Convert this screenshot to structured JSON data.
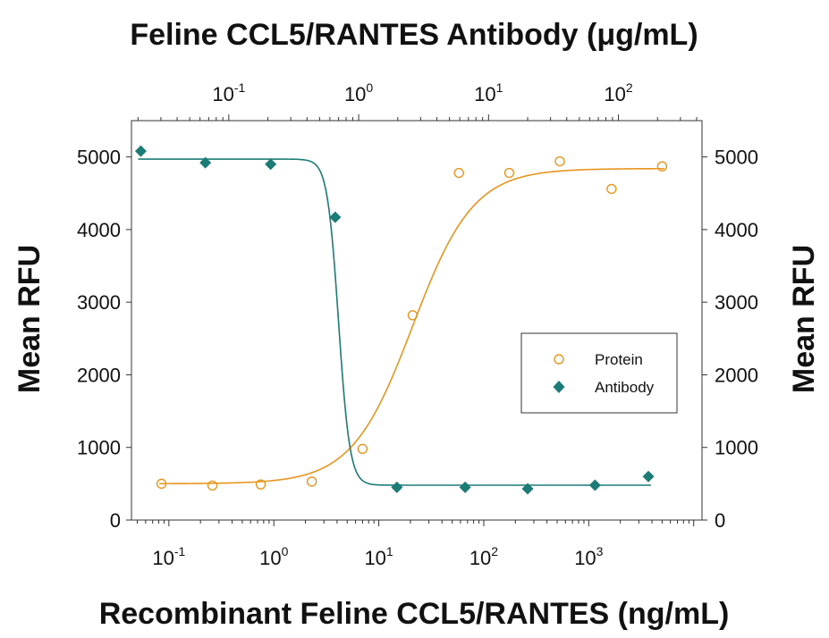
{
  "chart_data": {
    "type": "scatter",
    "top_title": "Feline CCL5/RANTES Antibody (μg/mL)",
    "xlabel": "Recombinant Feline CCL5/RANTES (ng/mL)",
    "ylabel_left": "Mean RFU",
    "ylabel_right": "Mean RFU",
    "bottom_axis": {
      "scale": "log",
      "range": [
        0.044,
        12000
      ],
      "ticks": [
        {
          "base": "10",
          "exp": "-1",
          "value": 0.1
        },
        {
          "base": "10",
          "exp": "0",
          "value": 1
        },
        {
          "base": "10",
          "exp": "1",
          "value": 10
        },
        {
          "base": "10",
          "exp": "2",
          "value": 100
        },
        {
          "base": "10",
          "exp": "3",
          "value": 1000
        }
      ]
    },
    "top_axis": {
      "scale": "log",
      "range": [
        0.0178,
        440
      ],
      "ticks": [
        {
          "base": "10",
          "exp": "-1",
          "value": 0.1
        },
        {
          "base": "10",
          "exp": "0",
          "value": 1
        },
        {
          "base": "10",
          "exp": "1",
          "value": 10
        },
        {
          "base": "10",
          "exp": "2",
          "value": 100
        }
      ]
    },
    "y_axis": {
      "range": [
        0,
        5500
      ],
      "ticks": [
        "0",
        "1000",
        "2000",
        "3000",
        "4000",
        "5000"
      ]
    },
    "series": [
      {
        "name": "Protein",
        "axis": "bottom",
        "marker": "open-circle",
        "color": "#E8951F",
        "points": [
          {
            "x": 0.085,
            "y": 500
          },
          {
            "x": 0.26,
            "y": 475
          },
          {
            "x": 0.75,
            "y": 490
          },
          {
            "x": 2.3,
            "y": 530
          },
          {
            "x": 7.0,
            "y": 980
          },
          {
            "x": 21,
            "y": 2820
          },
          {
            "x": 58,
            "y": 4780
          },
          {
            "x": 175,
            "y": 4780
          },
          {
            "x": 530,
            "y": 4940
          },
          {
            "x": 1650,
            "y": 4560
          },
          {
            "x": 5000,
            "y": 4870
          }
        ],
        "fit": {
          "bottom": 500,
          "top": 4840,
          "ec50": 21,
          "hill": 1.5
        }
      },
      {
        "name": "Antibody",
        "axis": "top",
        "marker": "filled-diamond",
        "color": "#1B7B77",
        "points": [
          {
            "x": 0.021,
            "y": 5080
          },
          {
            "x": 0.066,
            "y": 4920
          },
          {
            "x": 0.21,
            "y": 4900
          },
          {
            "x": 0.66,
            "y": 4170
          },
          {
            "x": 1.97,
            "y": 450
          },
          {
            "x": 6.6,
            "y": 450
          },
          {
            "x": 20,
            "y": 430
          },
          {
            "x": 66,
            "y": 480
          },
          {
            "x": 170,
            "y": 600
          }
        ],
        "fit": {
          "bottom": 480,
          "top": 4970,
          "ec50": 0.7,
          "hill": -10
        }
      }
    ],
    "legend": {
      "position": "right-middle",
      "entries": [
        "Protein",
        "Antibody"
      ]
    }
  }
}
